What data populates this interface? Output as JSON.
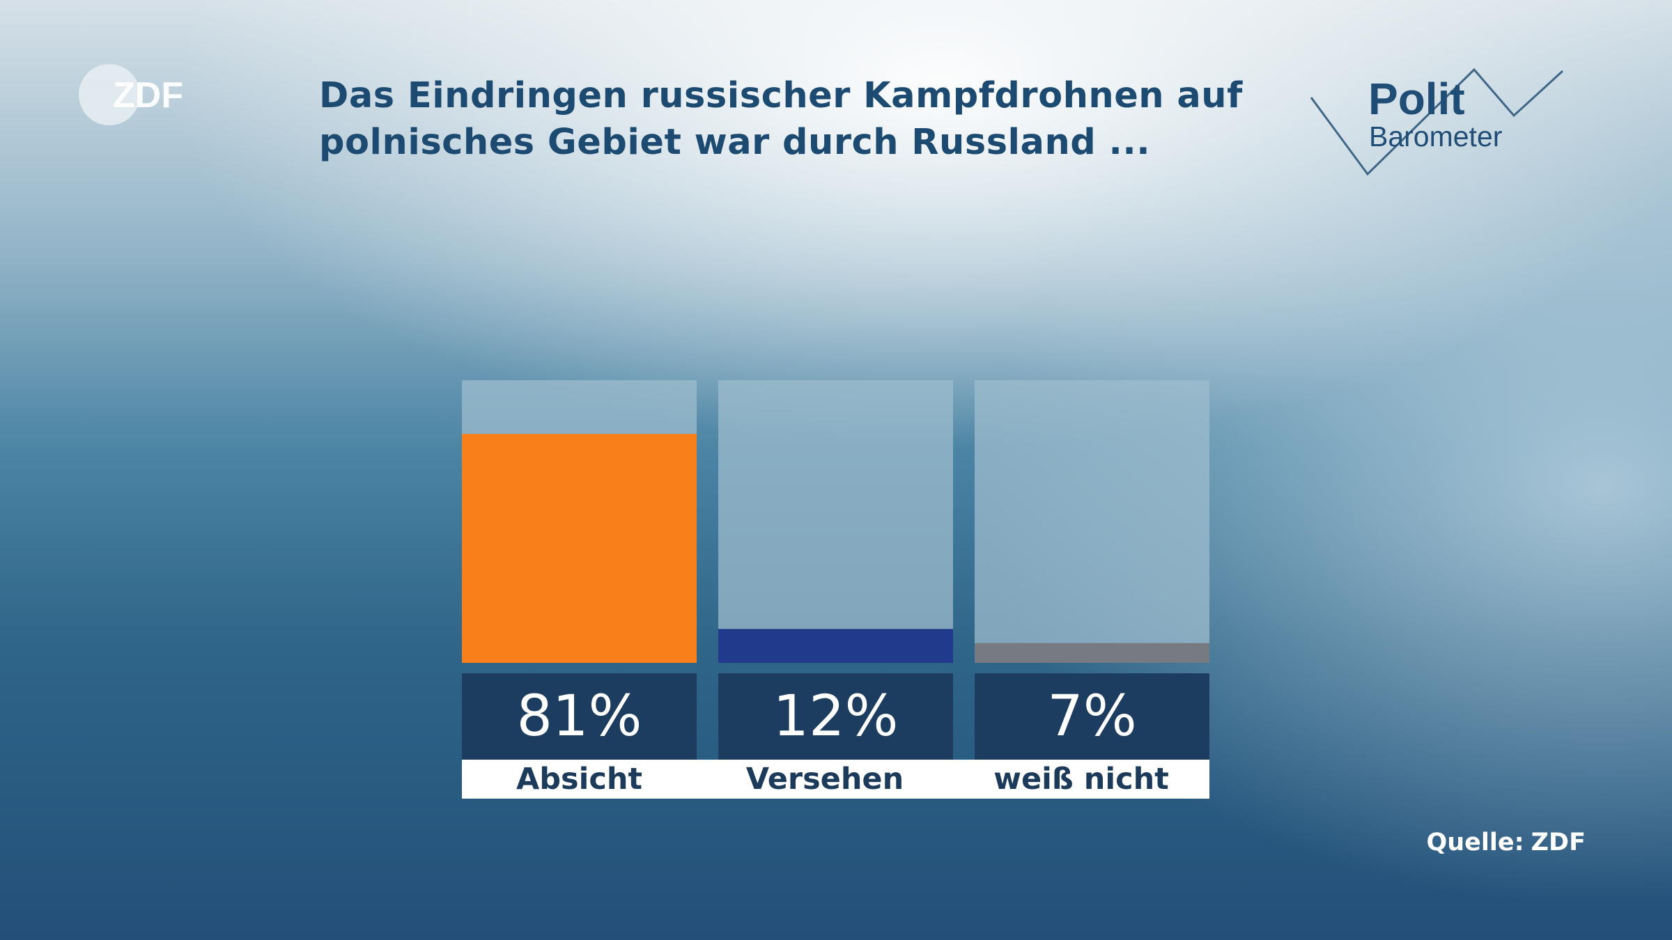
{
  "brand": {
    "broadcaster": "ZDF",
    "program_line1": "Polit",
    "program_line2": "Barometer"
  },
  "title": {
    "line1": "Das Eindringen russischer Kampfdrohnen auf",
    "line2": "polnisches Gebiet war durch Russland ..."
  },
  "chart_data": {
    "type": "bar",
    "title": "Das Eindringen russischer Kampfdrohnen auf polnisches Gebiet war durch Russland ...",
    "categories": [
      "Absicht",
      "Versehen",
      "weiß nicht"
    ],
    "values": [
      81,
      12,
      7
    ],
    "value_labels": [
      "81%",
      "12%",
      "7%"
    ],
    "unit": "%",
    "ylim": [
      0,
      100
    ],
    "xlabel": "",
    "ylabel": "",
    "colors": [
      "#f97f1b",
      "#213a8c",
      "#777a80"
    ],
    "track_color": "#9dbccd"
  },
  "source": {
    "label": "Quelle:",
    "value": "ZDF"
  }
}
